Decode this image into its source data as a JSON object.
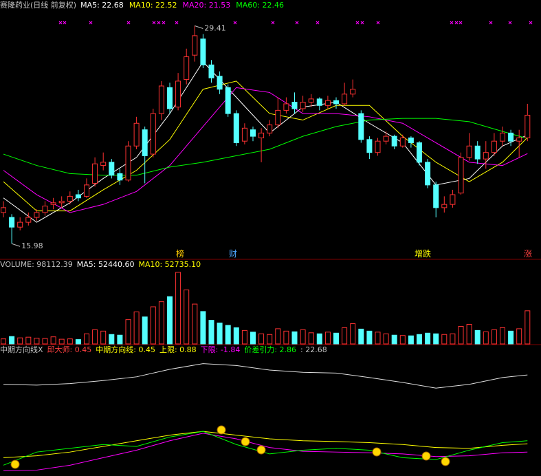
{
  "chart_data": [
    {
      "type": "candlestick",
      "title": "赛隆药业(日线 前复权)",
      "up_color": "#ff3232",
      "down_color": "#54ffff",
      "ylim": [
        15.1,
        31.0
      ],
      "ohlc": [
        [
          17.9,
          18.6,
          17.6,
          18.2
        ],
        [
          17.6,
          17.8,
          15.98,
          17.0
        ],
        [
          17.0,
          17.6,
          16.8,
          17.3
        ],
        [
          17.3,
          17.9,
          17.1,
          17.6
        ],
        [
          17.6,
          18.1,
          17.4,
          17.9
        ],
        [
          17.9,
          18.6,
          17.7,
          18.3
        ],
        [
          18.4,
          18.8,
          18.1,
          18.5
        ],
        [
          18.5,
          18.9,
          18.2,
          18.6
        ],
        [
          18.6,
          19.2,
          18.4,
          18.9
        ],
        [
          19.0,
          19.3,
          18.6,
          18.8
        ],
        [
          18.9,
          20.0,
          18.8,
          19.6
        ],
        [
          19.7,
          21.3,
          19.5,
          20.9
        ],
        [
          20.8,
          21.6,
          20.5,
          21.0
        ],
        [
          21.0,
          21.2,
          20.0,
          20.2
        ],
        [
          20.3,
          20.6,
          19.6,
          19.9
        ],
        [
          19.9,
          22.3,
          19.8,
          22.0
        ],
        [
          22.0,
          23.8,
          21.8,
          23.4
        ],
        [
          23.0,
          23.2,
          19.7,
          21.4
        ],
        [
          21.5,
          24.3,
          21.3,
          24.0
        ],
        [
          24.0,
          26.0,
          23.6,
          25.7
        ],
        [
          25.6,
          25.9,
          24.0,
          24.3
        ],
        [
          24.4,
          26.5,
          24.2,
          26.0
        ],
        [
          26.1,
          28.0,
          25.8,
          27.5
        ],
        [
          27.6,
          29.41,
          27.2,
          28.8
        ],
        [
          28.6,
          28.9,
          26.8,
          27.0
        ],
        [
          27.0,
          27.3,
          25.9,
          26.2
        ],
        [
          26.3,
          26.6,
          25.2,
          25.5
        ],
        [
          25.6,
          25.8,
          23.8,
          24.0
        ],
        [
          24.0,
          24.2,
          22.0,
          22.2
        ],
        [
          22.3,
          23.4,
          22.1,
          23.1
        ],
        [
          23.0,
          23.2,
          22.3,
          22.6
        ],
        [
          22.5,
          23.1,
          21.0,
          22.8
        ],
        [
          22.8,
          23.6,
          22.6,
          23.3
        ],
        [
          23.3,
          25.0,
          23.1,
          24.2
        ],
        [
          24.2,
          25.0,
          24.0,
          24.6
        ],
        [
          24.7,
          25.3,
          24.0,
          24.3
        ],
        [
          24.3,
          25.1,
          24.1,
          24.7
        ],
        [
          24.7,
          25.2,
          24.4,
          24.9
        ],
        [
          24.9,
          25.0,
          24.2,
          24.5
        ],
        [
          24.5,
          25.1,
          24.3,
          24.8
        ],
        [
          24.8,
          25.0,
          24.3,
          24.6
        ],
        [
          24.6,
          25.9,
          24.5,
          25.2
        ],
        [
          25.2,
          26.1,
          25.0,
          25.5
        ],
        [
          24.0,
          24.2,
          22.2,
          22.4
        ],
        [
          22.4,
          22.6,
          21.2,
          21.6
        ],
        [
          21.6,
          22.5,
          21.4,
          22.3
        ],
        [
          22.3,
          22.9,
          22.1,
          22.6
        ],
        [
          22.6,
          22.7,
          21.8,
          22.0
        ],
        [
          22.0,
          22.7,
          21.9,
          22.5
        ],
        [
          22.5,
          22.6,
          21.9,
          22.2
        ],
        [
          22.2,
          22.3,
          20.8,
          21.0
        ],
        [
          21.0,
          21.2,
          19.4,
          19.6
        ],
        [
          19.6,
          19.8,
          17.6,
          18.2
        ],
        [
          18.2,
          18.9,
          17.9,
          18.4
        ],
        [
          18.4,
          19.3,
          18.2,
          19.0
        ],
        [
          19.1,
          21.6,
          19.0,
          21.3
        ],
        [
          21.3,
          22.8,
          21.1,
          22.0
        ],
        [
          22.0,
          22.3,
          20.9,
          21.2
        ],
        [
          21.2,
          22.3,
          20.6,
          21.6
        ],
        [
          21.6,
          22.8,
          21.4,
          22.3
        ],
        [
          22.3,
          23.2,
          22.0,
          22.8
        ],
        [
          22.8,
          23.0,
          22.0,
          22.3
        ],
        [
          22.3,
          23.0,
          21.3,
          22.5
        ],
        [
          22.5,
          24.6,
          22.3,
          23.9
        ]
      ],
      "x": [
        0,
        4,
        8,
        12,
        16,
        20,
        24,
        28,
        32,
        36,
        40,
        44,
        48,
        52,
        56,
        60,
        63
      ],
      "series": [
        {
          "name": "MA5: 22.68",
          "color": "#ffffff",
          "values": [
            18.8,
            17.3,
            18.5,
            20.0,
            21.3,
            24.0,
            27.2,
            25.0,
            22.8,
            24.4,
            24.7,
            23.4,
            22.2,
            19.6,
            20.0,
            22.0,
            22.68
          ]
        },
        {
          "name": "MA10: 22.52",
          "color": "#ffff00",
          "values": [
            19.8,
            18.0,
            18.0,
            19.3,
            20.5,
            22.4,
            25.5,
            26.0,
            24.0,
            23.6,
            24.5,
            24.5,
            22.6,
            21.0,
            19.8,
            21.0,
            22.52
          ]
        },
        {
          "name": "MA20: 21.53",
          "color": "#ff00ff",
          "values": [
            20.5,
            19.0,
            17.9,
            18.4,
            19.2,
            20.8,
            23.2,
            25.6,
            25.3,
            24.0,
            24.0,
            23.8,
            23.4,
            22.2,
            21.0,
            20.8,
            21.53
          ]
        },
        {
          "name": "MA60: 22.46",
          "color": "#00ff00",
          "values": [
            21.5,
            20.8,
            20.3,
            20.2,
            20.2,
            20.7,
            21.0,
            21.4,
            21.8,
            22.6,
            23.2,
            23.6,
            23.7,
            23.7,
            23.5,
            22.9,
            22.46
          ]
        }
      ],
      "max_label": 29.41,
      "min_label": 15.98,
      "events": [
        "榜",
        "财",
        "增跌",
        "涨"
      ]
    },
    {
      "type": "bar",
      "title": "VOLUME: 98112.39",
      "legend": [
        "MA5: 52440.60",
        "MA10: 52735.10"
      ],
      "ylim": [
        0,
        220000
      ],
      "values": [
        15000,
        22000,
        18000,
        20000,
        17000,
        16000,
        21000,
        14000,
        15000,
        13000,
        30000,
        42000,
        38000,
        28000,
        26000,
        72000,
        95000,
        80000,
        110000,
        125000,
        140000,
        212000,
        160000,
        118000,
        96000,
        70000,
        62000,
        55000,
        48000,
        40000,
        35000,
        30000,
        28000,
        45000,
        38000,
        36000,
        42000,
        33000,
        30000,
        35000,
        32000,
        48000,
        60000,
        44000,
        38000,
        35000,
        30000,
        26000,
        25000,
        24000,
        28000,
        32000,
        30000,
        28000,
        30000,
        52000,
        58000,
        40000,
        36000,
        42000,
        48000,
        38000,
        45000,
        98112.39
      ]
    },
    {
      "type": "line",
      "title": "中期方向线X",
      "ylim": [
        -2,
        1.2
      ],
      "x": [
        0,
        4,
        8,
        12,
        16,
        20,
        24,
        28,
        32,
        36,
        40,
        44,
        48,
        52,
        56,
        60,
        63
      ],
      "legend": [
        {
          "text": "邱大师: 0.45",
          "color": "#ff4040"
        },
        {
          "text": "中期方向线: 0.45",
          "color": "#ffff00"
        },
        {
          "text": "上限: 0.88",
          "color": "#ffff00"
        },
        {
          "text": "下限: -1.84",
          "color": "#ff00ff"
        },
        {
          "text": "价差引力: 2.86",
          "color": "#00ff00"
        },
        {
          "text": ": 22.68",
          "color": "#c0c0c0"
        }
      ],
      "series": [
        {
          "color": "#e0e0e0",
          "values": [
            0.4,
            0.38,
            0.42,
            0.5,
            0.6,
            0.8,
            0.95,
            0.9,
            0.78,
            0.72,
            0.7,
            0.58,
            0.45,
            0.3,
            0.4,
            0.58,
            0.65
          ]
        },
        {
          "color": "#ffff00",
          "values": [
            -1.55,
            -1.5,
            -1.4,
            -1.25,
            -1.1,
            -0.95,
            -0.85,
            -0.95,
            -1.05,
            -1.1,
            -1.12,
            -1.15,
            -1.2,
            -1.28,
            -1.3,
            -1.22,
            -1.18
          ]
        },
        {
          "color": "#ff00ff",
          "values": [
            -1.9,
            -1.88,
            -1.75,
            -1.55,
            -1.35,
            -1.1,
            -0.9,
            -1.05,
            -1.28,
            -1.38,
            -1.4,
            -1.42,
            -1.45,
            -1.52,
            -1.5,
            -1.42,
            -1.4
          ]
        },
        {
          "color": "#00ff00",
          "values": [
            -1.75,
            -1.4,
            -1.3,
            -1.2,
            -1.25,
            -1.0,
            -0.85,
            -1.2,
            -1.45,
            -1.35,
            -1.3,
            -1.35,
            -1.55,
            -1.6,
            -1.35,
            -1.15,
            -1.1
          ]
        }
      ]
    }
  ]
}
